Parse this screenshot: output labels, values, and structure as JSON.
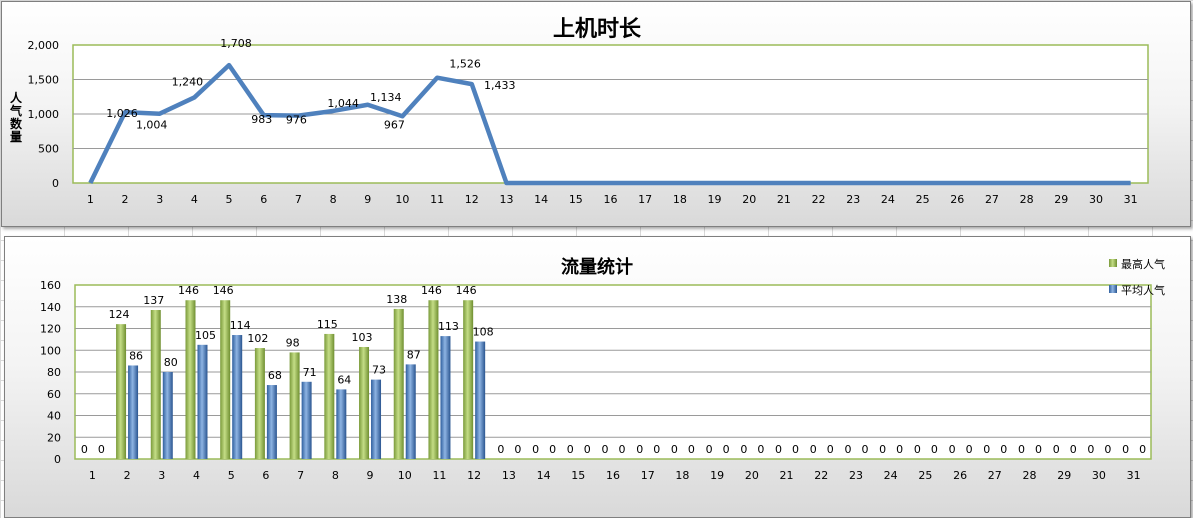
{
  "colors": {
    "line": "#4f81bd",
    "bar_green": "#9bbb59",
    "bar_blue": "#4f81bd",
    "plot_border": "#9bbb59",
    "gridline": "#9a9a9a"
  },
  "chart_data": [
    {
      "type": "line",
      "title": "上机时长",
      "ylabel": "人气数量",
      "xlabel": "",
      "categories": [
        "1",
        "2",
        "3",
        "4",
        "5",
        "6",
        "7",
        "8",
        "9",
        "10",
        "11",
        "12",
        "13",
        "14",
        "15",
        "16",
        "17",
        "18",
        "19",
        "20",
        "21",
        "22",
        "23",
        "24",
        "25",
        "26",
        "27",
        "28",
        "29",
        "30",
        "31"
      ],
      "series": [
        {
          "values": [
            0,
            1026,
            1004,
            1240,
            1708,
            983,
            976,
            1044,
            1134,
            967,
            1526,
            1433,
            0,
            0,
            0,
            0,
            0,
            0,
            0,
            0,
            0,
            0,
            0,
            0,
            0,
            0,
            0,
            0,
            0,
            0,
            0
          ]
        }
      ],
      "data_labels": [
        "",
        "1,026",
        "1,004",
        "1,240",
        "1,708",
        "983",
        "976",
        "1,044",
        "1,134",
        "967",
        "1,526",
        "1,433"
      ],
      "ylim": [
        0,
        2000
      ],
      "yticks": [
        "0",
        "500",
        "1,000",
        "1,500",
        "2,000"
      ],
      "grid": true
    },
    {
      "type": "bar",
      "title": "流量统计",
      "xlabel": "",
      "ylabel": "",
      "categories": [
        "1",
        "2",
        "3",
        "4",
        "5",
        "6",
        "7",
        "8",
        "9",
        "10",
        "11",
        "12",
        "13",
        "14",
        "15",
        "16",
        "17",
        "18",
        "19",
        "20",
        "21",
        "22",
        "23",
        "24",
        "25",
        "26",
        "27",
        "28",
        "29",
        "30",
        "31"
      ],
      "series": [
        {
          "name": "最高人气",
          "values": [
            0,
            124,
            137,
            146,
            146,
            102,
            98,
            115,
            103,
            138,
            146,
            146,
            0,
            0,
            0,
            0,
            0,
            0,
            0,
            0,
            0,
            0,
            0,
            0,
            0,
            0,
            0,
            0,
            0,
            0,
            0
          ]
        },
        {
          "name": "平均人气",
          "values": [
            0,
            86,
            80,
            105,
            114,
            68,
            71,
            64,
            73,
            87,
            113,
            108,
            0,
            0,
            0,
            0,
            0,
            0,
            0,
            0,
            0,
            0,
            0,
            0,
            0,
            0,
            0,
            0,
            0,
            0,
            0
          ]
        }
      ],
      "ylim": [
        0,
        160
      ],
      "yticks": [
        "0",
        "20",
        "40",
        "60",
        "80",
        "100",
        "120",
        "140",
        "160"
      ],
      "legend": "top-right",
      "grid": true
    }
  ]
}
